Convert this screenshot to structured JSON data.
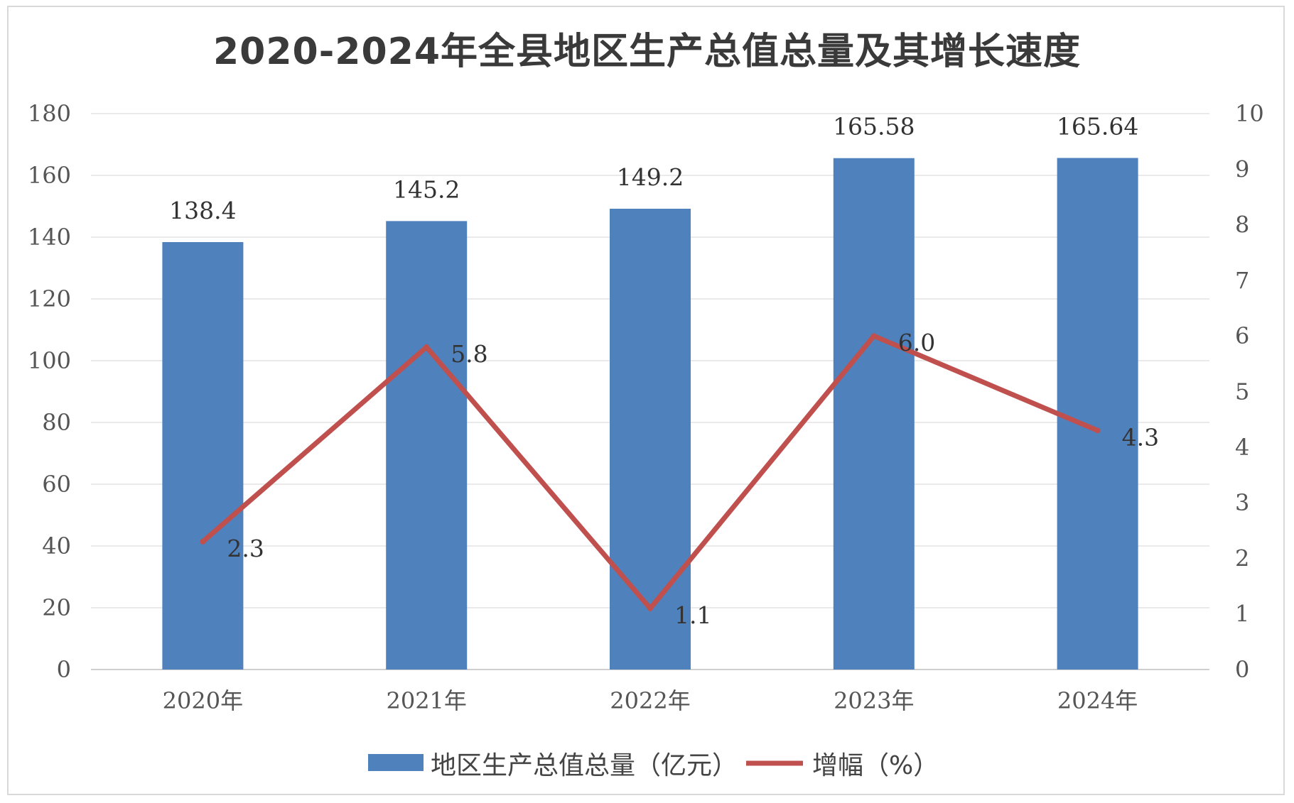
{
  "chart_data": {
    "type": "bar",
    "title": "2020-2024年全县地区生产总值总量及其增长速度",
    "categories": [
      "2020年",
      "2021年",
      "2022年",
      "2023年",
      "2024年"
    ],
    "series": [
      {
        "name": "地区生产总值总量（亿元）",
        "type": "bar",
        "axis": "left",
        "color": "#4f81bd",
        "values": [
          138.4,
          145.2,
          149.2,
          165.58,
          165.64
        ],
        "labels": [
          "138.4",
          "145.2",
          "149.2",
          "165.58",
          "165.64"
        ]
      },
      {
        "name": "增幅（%）",
        "type": "line",
        "axis": "right",
        "color": "#c0504d",
        "values": [
          2.3,
          5.8,
          1.1,
          6.0,
          4.3
        ],
        "labels": [
          "2.3",
          "5.8",
          "1.1",
          "6.0",
          "4.3"
        ]
      }
    ],
    "y_left": {
      "min": 0,
      "max": 180,
      "step": 20
    },
    "y_right": {
      "min": 0,
      "max": 10,
      "step": 1
    },
    "grid": true,
    "legend": "bottom"
  }
}
